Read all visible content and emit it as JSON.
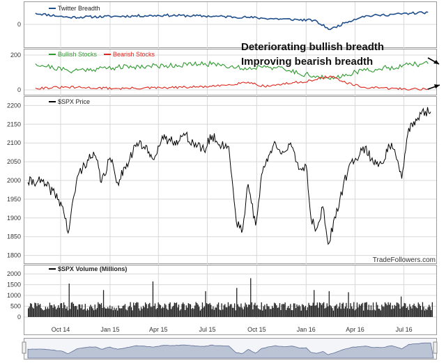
{
  "colors": {
    "twitter": "#1f4e8c",
    "bullish": "#2e9a2e",
    "bearish": "#e0261c",
    "price": "#000000",
    "volume": "#222222",
    "grid": "#d8d8d8",
    "navigator": "#8d9ab8"
  },
  "chart_data": [
    {
      "type": "line",
      "legend": [
        "Twitter Breadth"
      ],
      "yticks": [
        "0"
      ],
      "ylim": [
        -1,
        1
      ],
      "series": [
        {
          "name": "Twitter Breadth",
          "x": [
            "2014-08",
            "2014-10",
            "2015-01",
            "2015-04",
            "2015-07",
            "2015-09",
            "2015-10",
            "2016-01",
            "2016-02",
            "2016-03",
            "2016-04",
            "2016-05",
            "2016-07",
            "2016-08"
          ],
          "values": [
            0.55,
            0.35,
            0.4,
            0.45,
            0.4,
            0.35,
            0.3,
            0.2,
            -0.25,
            0.1,
            0.4,
            0.45,
            0.55,
            0.6
          ]
        }
      ]
    },
    {
      "type": "line",
      "legend": [
        "Bullish Stocks",
        "Bearish Stocks"
      ],
      "yticks": [
        "200",
        "0"
      ],
      "ylim": [
        -20,
        220
      ],
      "annotations": [
        "Deteriorating bullish breadth",
        "Improving bearish breadth"
      ],
      "series": [
        {
          "name": "Bullish Stocks",
          "x": [
            "2014-08",
            "2014-10",
            "2015-01",
            "2015-04",
            "2015-07",
            "2015-09",
            "2015-10",
            "2016-01",
            "2016-02",
            "2016-03",
            "2016-04",
            "2016-05",
            "2016-07",
            "2016-08"
          ],
          "values": [
            150,
            110,
            130,
            140,
            150,
            120,
            140,
            80,
            60,
            90,
            110,
            120,
            145,
            150
          ]
        },
        {
          "name": "Bearish Stocks",
          "x": [
            "2014-08",
            "2014-10",
            "2015-01",
            "2015-04",
            "2015-07",
            "2015-09",
            "2015-10",
            "2016-01",
            "2016-02",
            "2016-03",
            "2016-04",
            "2016-05",
            "2016-07",
            "2016-08"
          ],
          "values": [
            10,
            15,
            8,
            12,
            20,
            45,
            20,
            55,
            80,
            40,
            15,
            10,
            5,
            5
          ]
        }
      ]
    },
    {
      "type": "line",
      "legend": [
        "$SPX Price"
      ],
      "yticks": [
        2200,
        2150,
        2100,
        2050,
        2000,
        1950,
        1900,
        1850,
        1800
      ],
      "ylim": [
        1790,
        2210
      ],
      "xticks": [
        "Oct 14",
        "Jan 15",
        "Apr 15",
        "Jul 15",
        "Oct 15",
        "Jan 16",
        "Apr 16",
        "Jul 16"
      ],
      "credit": "TradeFollowers.com",
      "series": [
        {
          "name": "$SPX Price",
          "x": [
            "2014-08-01",
            "2014-08-20",
            "2014-09-05",
            "2014-09-20",
            "2014-10-05",
            "2014-10-15",
            "2014-11-01",
            "2014-11-20",
            "2014-12-05",
            "2014-12-16",
            "2015-01-01",
            "2015-01-15",
            "2015-02-01",
            "2015-02-20",
            "2015-03-05",
            "2015-03-20",
            "2015-04-10",
            "2015-05-01",
            "2015-05-20",
            "2015-06-05",
            "2015-06-25",
            "2015-07-10",
            "2015-07-20",
            "2015-08-10",
            "2015-08-24",
            "2015-09-05",
            "2015-09-15",
            "2015-09-29",
            "2015-10-10",
            "2015-10-25",
            "2015-11-05",
            "2015-11-20",
            "2015-12-05",
            "2015-12-20",
            "2016-01-01",
            "2016-01-10",
            "2016-01-20",
            "2016-02-01",
            "2016-02-11",
            "2016-02-25",
            "2016-03-10",
            "2016-03-25",
            "2016-04-10",
            "2016-04-20",
            "2016-05-01",
            "2016-05-20",
            "2016-06-08",
            "2016-06-27",
            "2016-07-10",
            "2016-07-25",
            "2016-08-10",
            "2016-08-20"
          ],
          "values": [
            1995,
            2000,
            1985,
            1965,
            1930,
            1860,
            2010,
            2055,
            2065,
            1995,
            2060,
            1995,
            2045,
            2100,
            2090,
            2060,
            2110,
            2105,
            2120,
            2100,
            2080,
            2120,
            2100,
            2090,
            1890,
            1870,
            1990,
            1880,
            2015,
            2070,
            2100,
            2075,
            2090,
            2030,
            2040,
            1900,
            1870,
            1930,
            1830,
            1900,
            1985,
            2050,
            2070,
            2090,
            2055,
            2045,
            2100,
            2005,
            2140,
            2160,
            2185,
            2183
          ]
        }
      ]
    },
    {
      "type": "bar",
      "legend": [
        "$SPX Volume (Millions)"
      ],
      "yticks": [
        2000,
        1500,
        1000,
        500,
        0
      ],
      "ylim": [
        0,
        2100
      ],
      "typical_range": [
        300,
        700
      ],
      "spikes": [
        {
          "x": "2014-10-15",
          "value": 1550
        },
        {
          "x": "2014-12-19",
          "value": 1250
        },
        {
          "x": "2015-03-20",
          "value": 1650
        },
        {
          "x": "2015-06-26",
          "value": 1200
        },
        {
          "x": "2015-08-24",
          "value": 1350
        },
        {
          "x": "2015-09-18",
          "value": 1800
        },
        {
          "x": "2016-01-15",
          "value": 1250
        },
        {
          "x": "2016-02-11",
          "value": 1200
        },
        {
          "x": "2016-03-18",
          "value": 1150
        },
        {
          "x": "2016-06-24",
          "value": 950
        }
      ]
    }
  ]
}
